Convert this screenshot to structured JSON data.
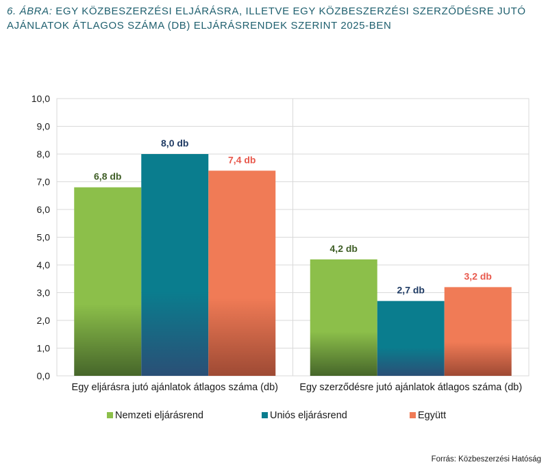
{
  "title": {
    "lead": "6. ábra:",
    "text": "Egy közbeszerzési eljárásra, illetve egy közbeszerzési szerződésre jutó ajánlatok átlagos száma (db) eljárásrendek szerint 2025-ben"
  },
  "chart_data": {
    "type": "bar",
    "title": "6. ábra: Egy közbeszerzési eljárásra, illetve egy közbeszerzési szerződésre jutó ajánlatok átlagos száma (db) eljárásrendek szerint 2025-ben",
    "categories": [
      "Egy eljárásra jutó ajánlatok átlagos száma (db)",
      "Egy szerződésre jutó ajánlatok átlagos száma (db)"
    ],
    "series": [
      {
        "name": "Nemzeti eljárásrend",
        "values": [
          6.8,
          4.2
        ],
        "labels": [
          "6,8 db",
          "4,2 db"
        ],
        "color": "#8cbf4a",
        "dark": "#46662a",
        "label_color": "#3f5e26"
      },
      {
        "name": "Uniós eljárásrend",
        "values": [
          8.0,
          2.7
        ],
        "labels": [
          "8,0 db",
          "2,7 db"
        ],
        "color": "#0a7d8e",
        "dark": "#2a4f76",
        "label_color": "#1e3a63"
      },
      {
        "name": "Együtt",
        "values": [
          7.4,
          3.2
        ],
        "labels": [
          "7,4 db",
          "3,2 db"
        ],
        "color": "#f07b56",
        "dark": "#9e4a34",
        "label_color": "#e8584c"
      }
    ],
    "ylim": [
      0,
      10
    ],
    "yticks": [
      0,
      1,
      2,
      3,
      4,
      5,
      6,
      7,
      8,
      9,
      10
    ],
    "ytick_labels": [
      "0,0",
      "1,0",
      "2,0",
      "3,0",
      "4,0",
      "5,0",
      "6,0",
      "7,0",
      "8,0",
      "9,0",
      "10,0"
    ],
    "grid": true,
    "legend": "bottom",
    "xlabel": "",
    "ylabel": ""
  },
  "source": "Forrás: Közbeszerzési Hatóság"
}
